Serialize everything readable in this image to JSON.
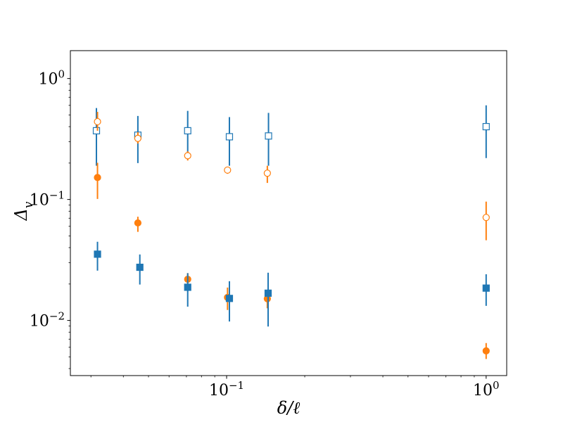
{
  "chart_data": {
    "type": "scatter",
    "xlabel": "δ/ℓ",
    "ylabel": "Δ",
    "ylabel_sub": "v",
    "x_scale": "log",
    "y_scale": "log",
    "xlim": [
      0.025,
      1.2
    ],
    "ylim": [
      0.0035,
      1.7
    ],
    "grid": false,
    "x_ticks": [
      {
        "value": 0.1,
        "base": "10",
        "exp": "−1"
      },
      {
        "value": 1,
        "base": "10",
        "exp": "0"
      }
    ],
    "y_ticks": [
      {
        "value": 0.01,
        "base": "10",
        "exp": "−2"
      },
      {
        "value": 0.1,
        "base": "10",
        "exp": "−1"
      },
      {
        "value": 1,
        "base": "10",
        "exp": "0"
      }
    ],
    "series": [
      {
        "color": "#1f77b4",
        "marker": "square",
        "filled": false,
        "points": [
          {
            "x": 0.0315,
            "y": 0.37,
            "lo": 0.19,
            "hi": 0.57
          },
          {
            "x": 0.0455,
            "y": 0.34,
            "lo": 0.2,
            "hi": 0.49
          },
          {
            "x": 0.0708,
            "y": 0.37,
            "lo": 0.24,
            "hi": 0.54
          },
          {
            "x": 0.1025,
            "y": 0.33,
            "lo": 0.19,
            "hi": 0.48
          },
          {
            "x": 0.145,
            "y": 0.335,
            "lo": 0.19,
            "hi": 0.52
          },
          {
            "x": 1.0,
            "y": 0.4,
            "lo": 0.22,
            "hi": 0.6
          }
        ]
      },
      {
        "color": "#ff7f0e",
        "marker": "circle",
        "filled": false,
        "points": [
          {
            "x": 0.0318,
            "y": 0.44,
            "lo": 0.37,
            "hi": 0.53
          },
          {
            "x": 0.0455,
            "y": 0.32,
            "lo": 0.29,
            "hi": 0.36
          },
          {
            "x": 0.0708,
            "y": 0.23,
            "lo": 0.21,
            "hi": 0.25
          },
          {
            "x": 0.1008,
            "y": 0.175,
            "lo": 0.163,
            "hi": 0.186
          },
          {
            "x": 0.1435,
            "y": 0.165,
            "lo": 0.137,
            "hi": 0.19
          },
          {
            "x": 1.0,
            "y": 0.071,
            "lo": 0.046,
            "hi": 0.096
          }
        ]
      },
      {
        "color": "#ff7f0e",
        "marker": "circle",
        "filled": true,
        "points": [
          {
            "x": 0.0318,
            "y": 0.152,
            "lo": 0.101,
            "hi": 0.201
          },
          {
            "x": 0.0455,
            "y": 0.064,
            "lo": 0.054,
            "hi": 0.072
          },
          {
            "x": 0.0708,
            "y": 0.0219,
            "lo": 0.0192,
            "hi": 0.0246
          },
          {
            "x": 0.1008,
            "y": 0.0155,
            "lo": 0.0122,
            "hi": 0.0187
          },
          {
            "x": 0.1435,
            "y": 0.0151,
            "lo": 0.0126,
            "hi": 0.0176
          },
          {
            "x": 1.0,
            "y": 0.0056,
            "lo": 0.0048,
            "hi": 0.0065
          }
        ]
      },
      {
        "color": "#1f77b4",
        "marker": "square",
        "filled": true,
        "points": [
          {
            "x": 0.0318,
            "y": 0.0353,
            "lo": 0.0258,
            "hi": 0.0447
          },
          {
            "x": 0.0463,
            "y": 0.0275,
            "lo": 0.0198,
            "hi": 0.0351
          },
          {
            "x": 0.0708,
            "y": 0.0188,
            "lo": 0.013,
            "hi": 0.0246
          },
          {
            "x": 0.1025,
            "y": 0.0152,
            "lo": 0.0098,
            "hi": 0.0211
          },
          {
            "x": 0.1445,
            "y": 0.0168,
            "lo": 0.0089,
            "hi": 0.0248
          },
          {
            "x": 1.0,
            "y": 0.0185,
            "lo": 0.0132,
            "hi": 0.0241
          }
        ]
      }
    ]
  }
}
